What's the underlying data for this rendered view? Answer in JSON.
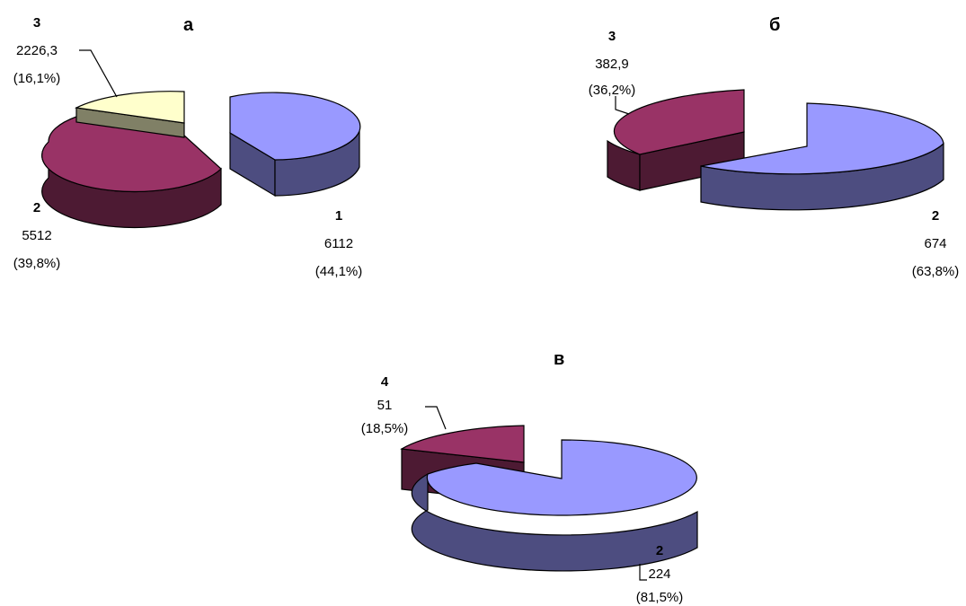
{
  "chart_data": [
    {
      "type": "pie",
      "title": "а",
      "slices": [
        {
          "id": "1",
          "value": 6112,
          "value_label": "6112",
          "pct_label": "(44,1%)",
          "color": "#9999ff"
        },
        {
          "id": "2",
          "value": 5512,
          "value_label": "5512",
          "pct_label": "(39,8%)",
          "color": "#993366"
        },
        {
          "id": "3",
          "value": 2226.3,
          "value_label": "2226,3",
          "pct_label": "(16,1%)",
          "color": "#ffffcc"
        }
      ]
    },
    {
      "type": "pie",
      "title": "б",
      "slices": [
        {
          "id": "2",
          "value": 674,
          "value_label": "674",
          "pct_label": "(63,8%)",
          "color": "#9999ff"
        },
        {
          "id": "3",
          "value": 382.9,
          "value_label": "382,9",
          "pct_label": "(36,2%)",
          "color": "#993366"
        }
      ]
    },
    {
      "type": "pie",
      "title": "в",
      "slices": [
        {
          "id": "2",
          "value": 224,
          "value_label": "224",
          "pct_label": "(81,5%)",
          "color": "#9999ff"
        },
        {
          "id": "4",
          "value": 51,
          "value_label": "51",
          "pct_label": "(18,5%)",
          "color": "#993366"
        }
      ]
    }
  ]
}
